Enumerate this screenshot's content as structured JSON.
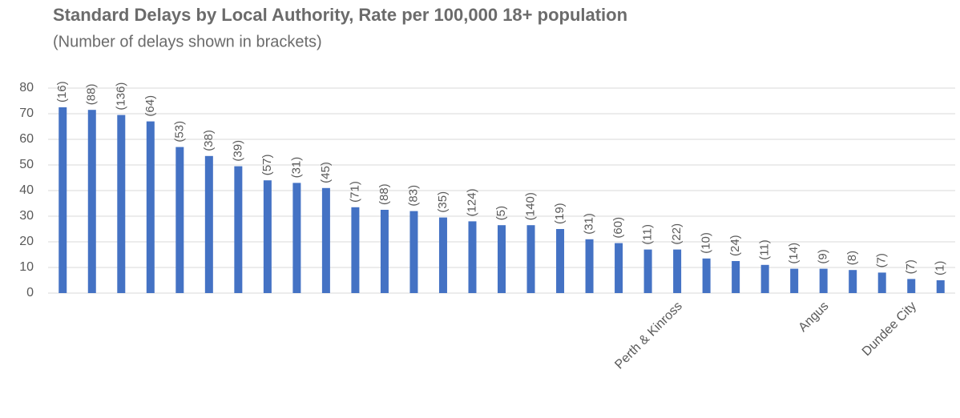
{
  "chart_data": {
    "type": "bar",
    "title": "Standard Delays by Local Authority, Rate per 100,000 18+ population",
    "subtitle": "(Number of delays shown in brackets)",
    "categories": [
      null,
      null,
      null,
      null,
      null,
      null,
      null,
      null,
      null,
      null,
      null,
      null,
      null,
      null,
      null,
      null,
      null,
      null,
      null,
      null,
      null,
      "Perth & Kinross",
      null,
      null,
      null,
      null,
      "Angus",
      null,
      null,
      "Dundee City",
      null
    ],
    "values": [
      72.5,
      71.5,
      69.5,
      67,
      57,
      53.5,
      49.5,
      44,
      43,
      41,
      33.5,
      32.5,
      32,
      29.5,
      28,
      26.5,
      26.5,
      25,
      21,
      19.5,
      17,
      17,
      13.5,
      12.5,
      11,
      9.5,
      9.5,
      9,
      8,
      5.5,
      5
    ],
    "count_labels": [
      "(16)",
      "(88)",
      "(136)",
      "(64)",
      "(53)",
      "(38)",
      "(39)",
      "(57)",
      "(31)",
      "(45)",
      "(71)",
      "(88)",
      "(83)",
      "(35)",
      "(124)",
      "(5)",
      "(140)",
      "(19)",
      "(31)",
      "(60)",
      "(11)",
      "(22)",
      "(10)",
      "(24)",
      "(11)",
      "(14)",
      "(9)",
      "(8)",
      "(7)",
      "(7)",
      "(1)"
    ],
    "color": "#4472c4",
    "ylim": [
      0,
      80
    ],
    "yticks": [
      0,
      10,
      20,
      30,
      40,
      50,
      60,
      70,
      80
    ],
    "grid": true
  }
}
